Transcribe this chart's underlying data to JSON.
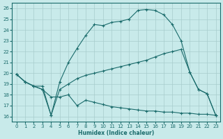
{
  "xlabel": "Humidex (Indice chaleur)",
  "xlim": [
    -0.5,
    23.5
  ],
  "ylim": [
    15.5,
    26.5
  ],
  "xticks": [
    0,
    1,
    2,
    3,
    4,
    5,
    6,
    7,
    8,
    9,
    10,
    11,
    12,
    13,
    14,
    15,
    16,
    17,
    18,
    19,
    20,
    21,
    22,
    23
  ],
  "yticks": [
    16,
    17,
    18,
    19,
    20,
    21,
    22,
    23,
    24,
    25,
    26
  ],
  "bg_color": "#c8eaea",
  "line_color": "#1a6b6b",
  "grid_color": "#a8cccc",
  "curves": [
    {
      "x": [
        0,
        1,
        2,
        3,
        4,
        5,
        6,
        7,
        8,
        9,
        10,
        11,
        12,
        13,
        14,
        15,
        16,
        17,
        18,
        19,
        20,
        21,
        22,
        23
      ],
      "y": [
        19.9,
        19.2,
        18.8,
        18.5,
        16.1,
        19.2,
        21.0,
        22.3,
        23.5,
        24.5,
        24.4,
        24.7,
        24.8,
        25.0,
        25.8,
        25.9,
        25.8,
        25.4,
        24.5,
        23.0,
        20.1,
        18.5,
        18.1,
        16.1
      ]
    },
    {
      "x": [
        0,
        1,
        2,
        3,
        4,
        5,
        6,
        7,
        8,
        9,
        10,
        11,
        12,
        13,
        14,
        15,
        16,
        17,
        18,
        19,
        20,
        21,
        22,
        23
      ],
      "y": [
        19.9,
        19.2,
        18.8,
        18.8,
        16.1,
        18.5,
        19.0,
        19.5,
        19.8,
        20.0,
        20.2,
        20.4,
        20.6,
        20.8,
        21.0,
        21.2,
        21.5,
        21.8,
        22.0,
        22.2,
        20.1,
        18.5,
        18.1,
        16.1
      ]
    },
    {
      "x": [
        0,
        1,
        2,
        3,
        4,
        5,
        6,
        7,
        8,
        9,
        10,
        11,
        12,
        13,
        14,
        15,
        16,
        17,
        18,
        19,
        20,
        21,
        22,
        23
      ],
      "y": [
        19.9,
        19.2,
        18.8,
        18.5,
        17.8,
        17.8,
        18.0,
        17.0,
        17.5,
        17.3,
        17.1,
        16.9,
        16.8,
        16.7,
        16.6,
        16.5,
        16.5,
        16.4,
        16.4,
        16.3,
        16.3,
        16.2,
        16.2,
        16.1
      ]
    }
  ]
}
